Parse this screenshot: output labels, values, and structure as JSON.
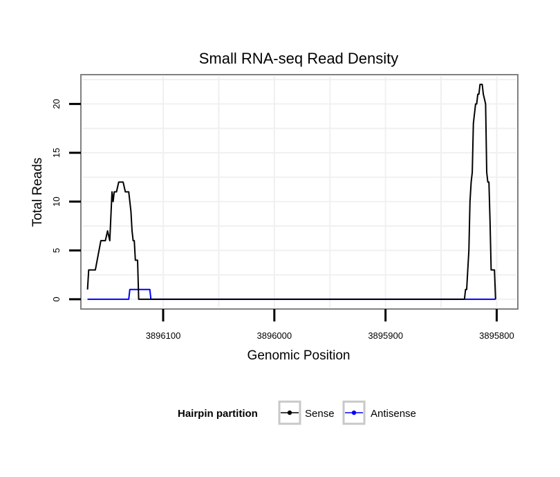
{
  "chart_data": {
    "type": "line",
    "title": "Small RNA-seq Read Density",
    "xlabel": "Genomic Position",
    "ylabel": "Total Reads",
    "x_reversed": true,
    "xlim": [
      3896174,
      3895781
    ],
    "ylim": [
      -1,
      23
    ],
    "x_ticks": [
      3896100,
      3896000,
      3895900,
      3895800
    ],
    "x_tick_labels": [
      "3896100",
      "3896000",
      "3895900",
      "3895800"
    ],
    "y_ticks": [
      0,
      5,
      10,
      15,
      20
    ],
    "y_tick_labels": [
      "0",
      "5",
      "10",
      "15",
      "20"
    ],
    "grid": true,
    "legend": {
      "title": "Hairpin partition",
      "position": "bottom",
      "entries": [
        {
          "name": "Sense",
          "color": "#000000"
        },
        {
          "name": "Antisense",
          "color": "#0000ff"
        }
      ]
    },
    "series": [
      {
        "name": "Sense",
        "color": "#000000",
        "x": [
          3896168,
          3896167,
          3896166,
          3896164,
          3896161,
          3896156,
          3896154,
          3896152,
          3896150,
          3896148,
          3896146,
          3896145,
          3896144,
          3896142,
          3896140,
          3896136,
          3896134,
          3896131,
          3896130,
          3896129,
          3896128,
          3896127,
          3896126,
          3896125,
          3896124,
          3896123,
          3896122,
          3896121,
          3896120,
          3896119,
          3896118,
          3896117,
          3896000,
          3895900,
          3895830,
          3895829,
          3895828,
          3895827,
          3895826,
          3895825,
          3895824,
          3895823,
          3895822,
          3895821,
          3895820,
          3895819,
          3895818,
          3895817,
          3895816,
          3895815,
          3895814,
          3895813,
          3895812,
          3895810,
          3895809,
          3895808,
          3895807,
          3895806,
          3895805,
          3895804,
          3895802,
          3895801
        ],
        "values": [
          1,
          3,
          3,
          3,
          3,
          6,
          6,
          6,
          7,
          6,
          11,
          10,
          11,
          11,
          12,
          12,
          11,
          11,
          10,
          9,
          7,
          6,
          6,
          4,
          4,
          4,
          0,
          0,
          0,
          0,
          0,
          0,
          0,
          0,
          0,
          0,
          1,
          1,
          3,
          5,
          10,
          12,
          13,
          18,
          19,
          20,
          20,
          21,
          21,
          22,
          22,
          22,
          21,
          20,
          13,
          12,
          12,
          8,
          3,
          3,
          3,
          0
        ]
      },
      {
        "name": "Antisense",
        "color": "#0000ff",
        "x": [
          3896168,
          3896131,
          3896130,
          3896112,
          3896111,
          3895801
        ],
        "values": [
          0,
          0,
          1,
          1,
          0,
          0
        ]
      }
    ]
  }
}
